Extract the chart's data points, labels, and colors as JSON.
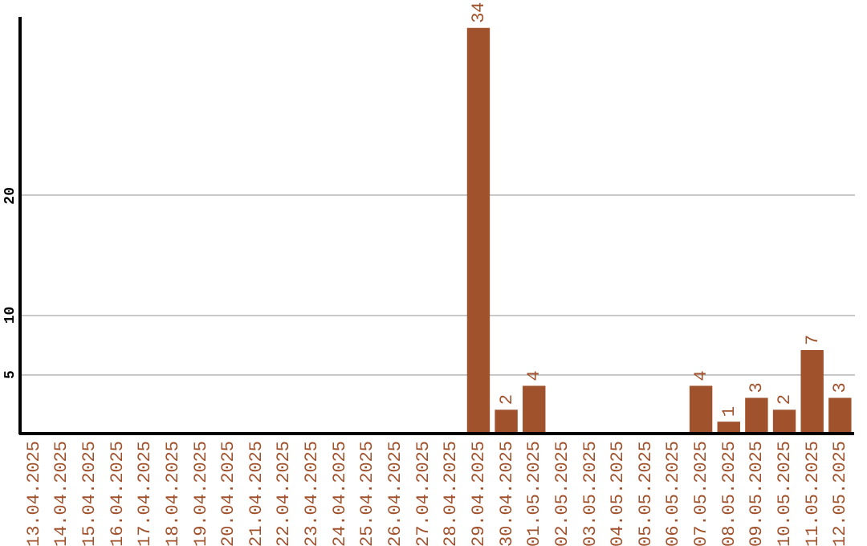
{
  "chart_data": {
    "type": "bar",
    "categories": [
      "13.04.2025",
      "14.04.2025",
      "15.04.2025",
      "16.04.2025",
      "17.04.2025",
      "18.04.2025",
      "19.04.2025",
      "20.04.2025",
      "21.04.2025",
      "22.04.2025",
      "23.04.2025",
      "24.04.2025",
      "25.04.2025",
      "26.04.2025",
      "27.04.2025",
      "28.04.2025",
      "29.04.2025",
      "30.04.2025",
      "01.05.2025",
      "02.05.2025",
      "03.05.2025",
      "04.05.2025",
      "05.05.2025",
      "06.05.2025",
      "07.05.2025",
      "08.05.2025",
      "09.05.2025",
      "10.05.2025",
      "11.05.2025",
      "12.05.2025"
    ],
    "values": [
      0,
      0,
      0,
      0,
      0,
      0,
      0,
      0,
      0,
      0,
      0,
      0,
      0,
      0,
      0,
      0,
      34,
      2,
      4,
      0,
      0,
      0,
      0,
      0,
      4,
      1,
      3,
      2,
      7,
      3
    ],
    "value_labels": [
      null,
      null,
      null,
      null,
      null,
      null,
      null,
      null,
      null,
      null,
      null,
      null,
      null,
      null,
      null,
      null,
      "34",
      "2",
      "4",
      null,
      null,
      null,
      null,
      null,
      "4",
      "1",
      "3",
      "2",
      "7",
      "3"
    ],
    "color": "#a0522d",
    "ylim": [
      0,
      35
    ],
    "yticks": [
      5,
      10,
      20
    ],
    "grid": "y"
  }
}
